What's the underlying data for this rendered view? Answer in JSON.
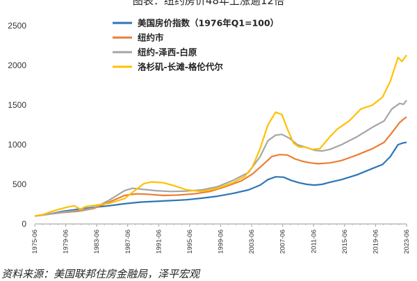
{
  "chart_data": {
    "type": "line",
    "title": "图表：纽约房价48年上涨逾12倍",
    "source": "资料来源：美国联邦住房金融局，泽平宏观",
    "ylim": [
      0,
      2500
    ],
    "yticks": [
      0,
      500,
      1000,
      1500,
      2000,
      2500
    ],
    "x_tick_labels": [
      "1975-06",
      "1979-06",
      "1983-06",
      "1987-06",
      "1991-06",
      "1995-06",
      "1999-06",
      "2003-06",
      "2007-06",
      "2011-06",
      "2015-06",
      "2019-06",
      "2023-06"
    ],
    "x_range": [
      1975.4,
      2023.4
    ],
    "grid": "none",
    "legend_position": "top-left",
    "series": [
      {
        "name": "美国房价指数（1976年Q1=100）",
        "color": "#2E75B6",
        "points": [
          [
            1975.4,
            100
          ],
          [
            1977,
            120
          ],
          [
            1979,
            160
          ],
          [
            1981,
            185
          ],
          [
            1983,
            210
          ],
          [
            1985,
            230
          ],
          [
            1987,
            255
          ],
          [
            1989,
            275
          ],
          [
            1991,
            285
          ],
          [
            1993,
            295
          ],
          [
            1995,
            305
          ],
          [
            1997,
            325
          ],
          [
            1999,
            350
          ],
          [
            2001,
            385
          ],
          [
            2003,
            430
          ],
          [
            2004.5,
            490
          ],
          [
            2005.5,
            560
          ],
          [
            2006.5,
            595
          ],
          [
            2007.5,
            590
          ],
          [
            2008.5,
            550
          ],
          [
            2009.5,
            520
          ],
          [
            2010.5,
            500
          ],
          [
            2011.5,
            490
          ],
          [
            2012.5,
            500
          ],
          [
            2013.5,
            525
          ],
          [
            2015,
            560
          ],
          [
            2017,
            620
          ],
          [
            2019,
            700
          ],
          [
            2020.3,
            750
          ],
          [
            2021.3,
            850
          ],
          [
            2022.3,
            1000
          ],
          [
            2022.9,
            1020
          ],
          [
            2023.4,
            1030
          ]
        ]
      },
      {
        "name": "纽约市",
        "color": "#ED7D31",
        "points": [
          [
            1975.4,
            100
          ],
          [
            1977,
            120
          ],
          [
            1979,
            145
          ],
          [
            1981,
            160
          ],
          [
            1983,
            195
          ],
          [
            1985,
            275
          ],
          [
            1987,
            360
          ],
          [
            1988.5,
            380
          ],
          [
            1990,
            375
          ],
          [
            1992,
            360
          ],
          [
            1994,
            365
          ],
          [
            1996,
            380
          ],
          [
            1998,
            410
          ],
          [
            2000,
            470
          ],
          [
            2002,
            540
          ],
          [
            2003.5,
            630
          ],
          [
            2005,
            760
          ],
          [
            2006,
            850
          ],
          [
            2007,
            875
          ],
          [
            2008,
            870
          ],
          [
            2009,
            820
          ],
          [
            2010,
            790
          ],
          [
            2011,
            770
          ],
          [
            2012,
            760
          ],
          [
            2013.5,
            770
          ],
          [
            2015,
            800
          ],
          [
            2017,
            870
          ],
          [
            2019,
            950
          ],
          [
            2020.5,
            1030
          ],
          [
            2021.5,
            1150
          ],
          [
            2022.5,
            1280
          ],
          [
            2023,
            1320
          ],
          [
            2023.4,
            1350
          ]
        ]
      },
      {
        "name": "纽约-泽西-白原",
        "color": "#A5A5A5",
        "points": [
          [
            1975.4,
            100
          ],
          [
            1977,
            120
          ],
          [
            1979,
            150
          ],
          [
            1981,
            170
          ],
          [
            1983,
            200
          ],
          [
            1985,
            300
          ],
          [
            1987,
            420
          ],
          [
            1988,
            450
          ],
          [
            1989,
            440
          ],
          [
            1991,
            420
          ],
          [
            1993,
            410
          ],
          [
            1995,
            415
          ],
          [
            1997,
            430
          ],
          [
            1999,
            470
          ],
          [
            2001,
            550
          ],
          [
            2003,
            650
          ],
          [
            2004.5,
            850
          ],
          [
            2005.5,
            1050
          ],
          [
            2006.5,
            1120
          ],
          [
            2007.3,
            1130
          ],
          [
            2008.3,
            1080
          ],
          [
            2009.3,
            1000
          ],
          [
            2010.3,
            970
          ],
          [
            2011.5,
            930
          ],
          [
            2012.5,
            920
          ],
          [
            2013.5,
            940
          ],
          [
            2015,
            1000
          ],
          [
            2017,
            1100
          ],
          [
            2019,
            1220
          ],
          [
            2020.5,
            1300
          ],
          [
            2021.5,
            1450
          ],
          [
            2022.5,
            1520
          ],
          [
            2023,
            1510
          ],
          [
            2023.4,
            1560
          ]
        ]
      },
      {
        "name": "洛杉矶-长滩-格伦代尔",
        "color": "#FFC000",
        "points": [
          [
            1975.4,
            100
          ],
          [
            1976.5,
            120
          ],
          [
            1978,
            170
          ],
          [
            1979.5,
            210
          ],
          [
            1980.5,
            230
          ],
          [
            1981.3,
            185
          ],
          [
            1982,
            220
          ],
          [
            1983.5,
            240
          ],
          [
            1985,
            260
          ],
          [
            1987,
            320
          ],
          [
            1988.3,
            420
          ],
          [
            1989.5,
            510
          ],
          [
            1990.5,
            530
          ],
          [
            1992,
            520
          ],
          [
            1993.5,
            480
          ],
          [
            1995,
            430
          ],
          [
            1997,
            410
          ],
          [
            1999,
            450
          ],
          [
            2001,
            520
          ],
          [
            2002.5,
            600
          ],
          [
            2003.5,
            720
          ],
          [
            2004.5,
            950
          ],
          [
            2005.5,
            1250
          ],
          [
            2006.5,
            1410
          ],
          [
            2007.3,
            1380
          ],
          [
            2008,
            1200
          ],
          [
            2008.8,
            1020
          ],
          [
            2009.5,
            970
          ],
          [
            2010.3,
            970
          ],
          [
            2011.2,
            940
          ],
          [
            2012.2,
            950
          ],
          [
            2013.5,
            1100
          ],
          [
            2014.5,
            1200
          ],
          [
            2016,
            1300
          ],
          [
            2017.5,
            1450
          ],
          [
            2019,
            1500
          ],
          [
            2020.3,
            1600
          ],
          [
            2021.3,
            1800
          ],
          [
            2022.3,
            2100
          ],
          [
            2022.8,
            2050
          ],
          [
            2023.4,
            2130
          ]
        ]
      }
    ]
  }
}
